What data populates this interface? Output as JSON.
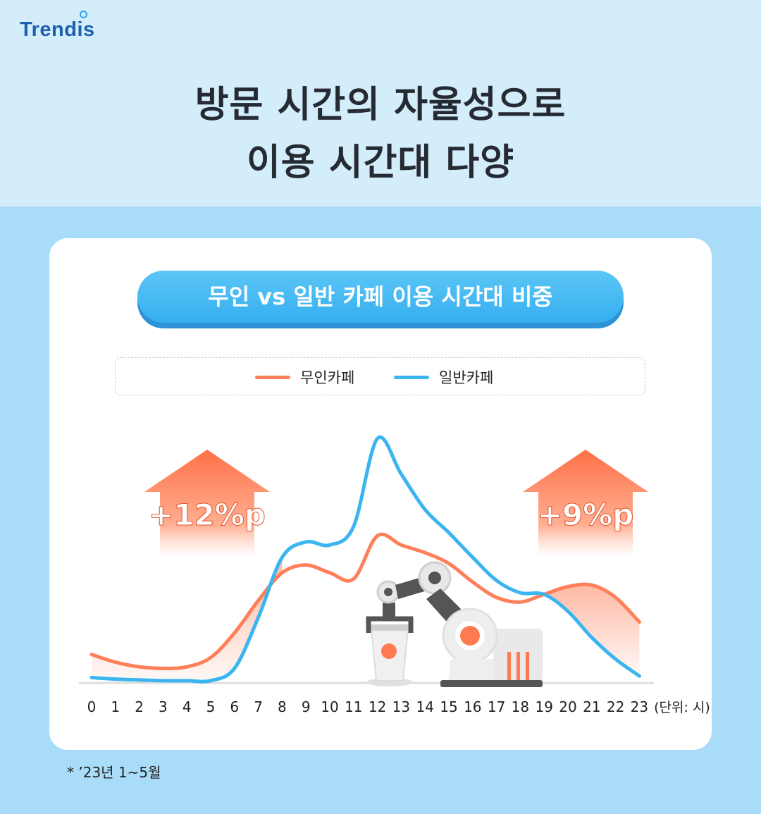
{
  "header": {
    "logo": "Trendis",
    "title_line1": "방문 시간의 자율성으로",
    "title_line2": "이용 시간대 다양"
  },
  "colors": {
    "unmanned": "#ff7f5a",
    "regular": "#3ab5f0",
    "arrow": "#ff7a50"
  },
  "chart_data": {
    "type": "line",
    "title": "무인 vs 일반 카페 이용 시간대 비중",
    "x_unit_label": "(단위: 시)",
    "x": [
      0,
      1,
      2,
      3,
      4,
      5,
      6,
      7,
      8,
      9,
      10,
      11,
      12,
      13,
      14,
      15,
      16,
      17,
      18,
      19,
      20,
      21,
      22,
      23
    ],
    "series": [
      {
        "name": "무인카페",
        "values": [
          1.8,
          1.3,
          1.0,
          0.9,
          1.0,
          1.6,
          3.2,
          5.3,
          7.1,
          7.6,
          7.1,
          6.7,
          9.5,
          8.9,
          8.4,
          7.7,
          6.5,
          5.5,
          5.2,
          5.7,
          6.2,
          6.3,
          5.5,
          3.9
        ]
      },
      {
        "name": "일반카페",
        "values": [
          0.3,
          0.2,
          0.15,
          0.1,
          0.1,
          0.1,
          0.9,
          4.2,
          8.1,
          9.1,
          8.9,
          10.1,
          15.8,
          13.5,
          11.2,
          9.7,
          8.1,
          6.6,
          5.8,
          5.7,
          4.6,
          2.9,
          1.5,
          0.4
        ]
      }
    ],
    "ylim": [
      0,
      16
    ],
    "annotations": [
      {
        "label": "+12%p",
        "position": "left"
      },
      {
        "label": "+9%p",
        "position": "right"
      }
    ]
  },
  "footnote": "* ’23년 1~5월"
}
